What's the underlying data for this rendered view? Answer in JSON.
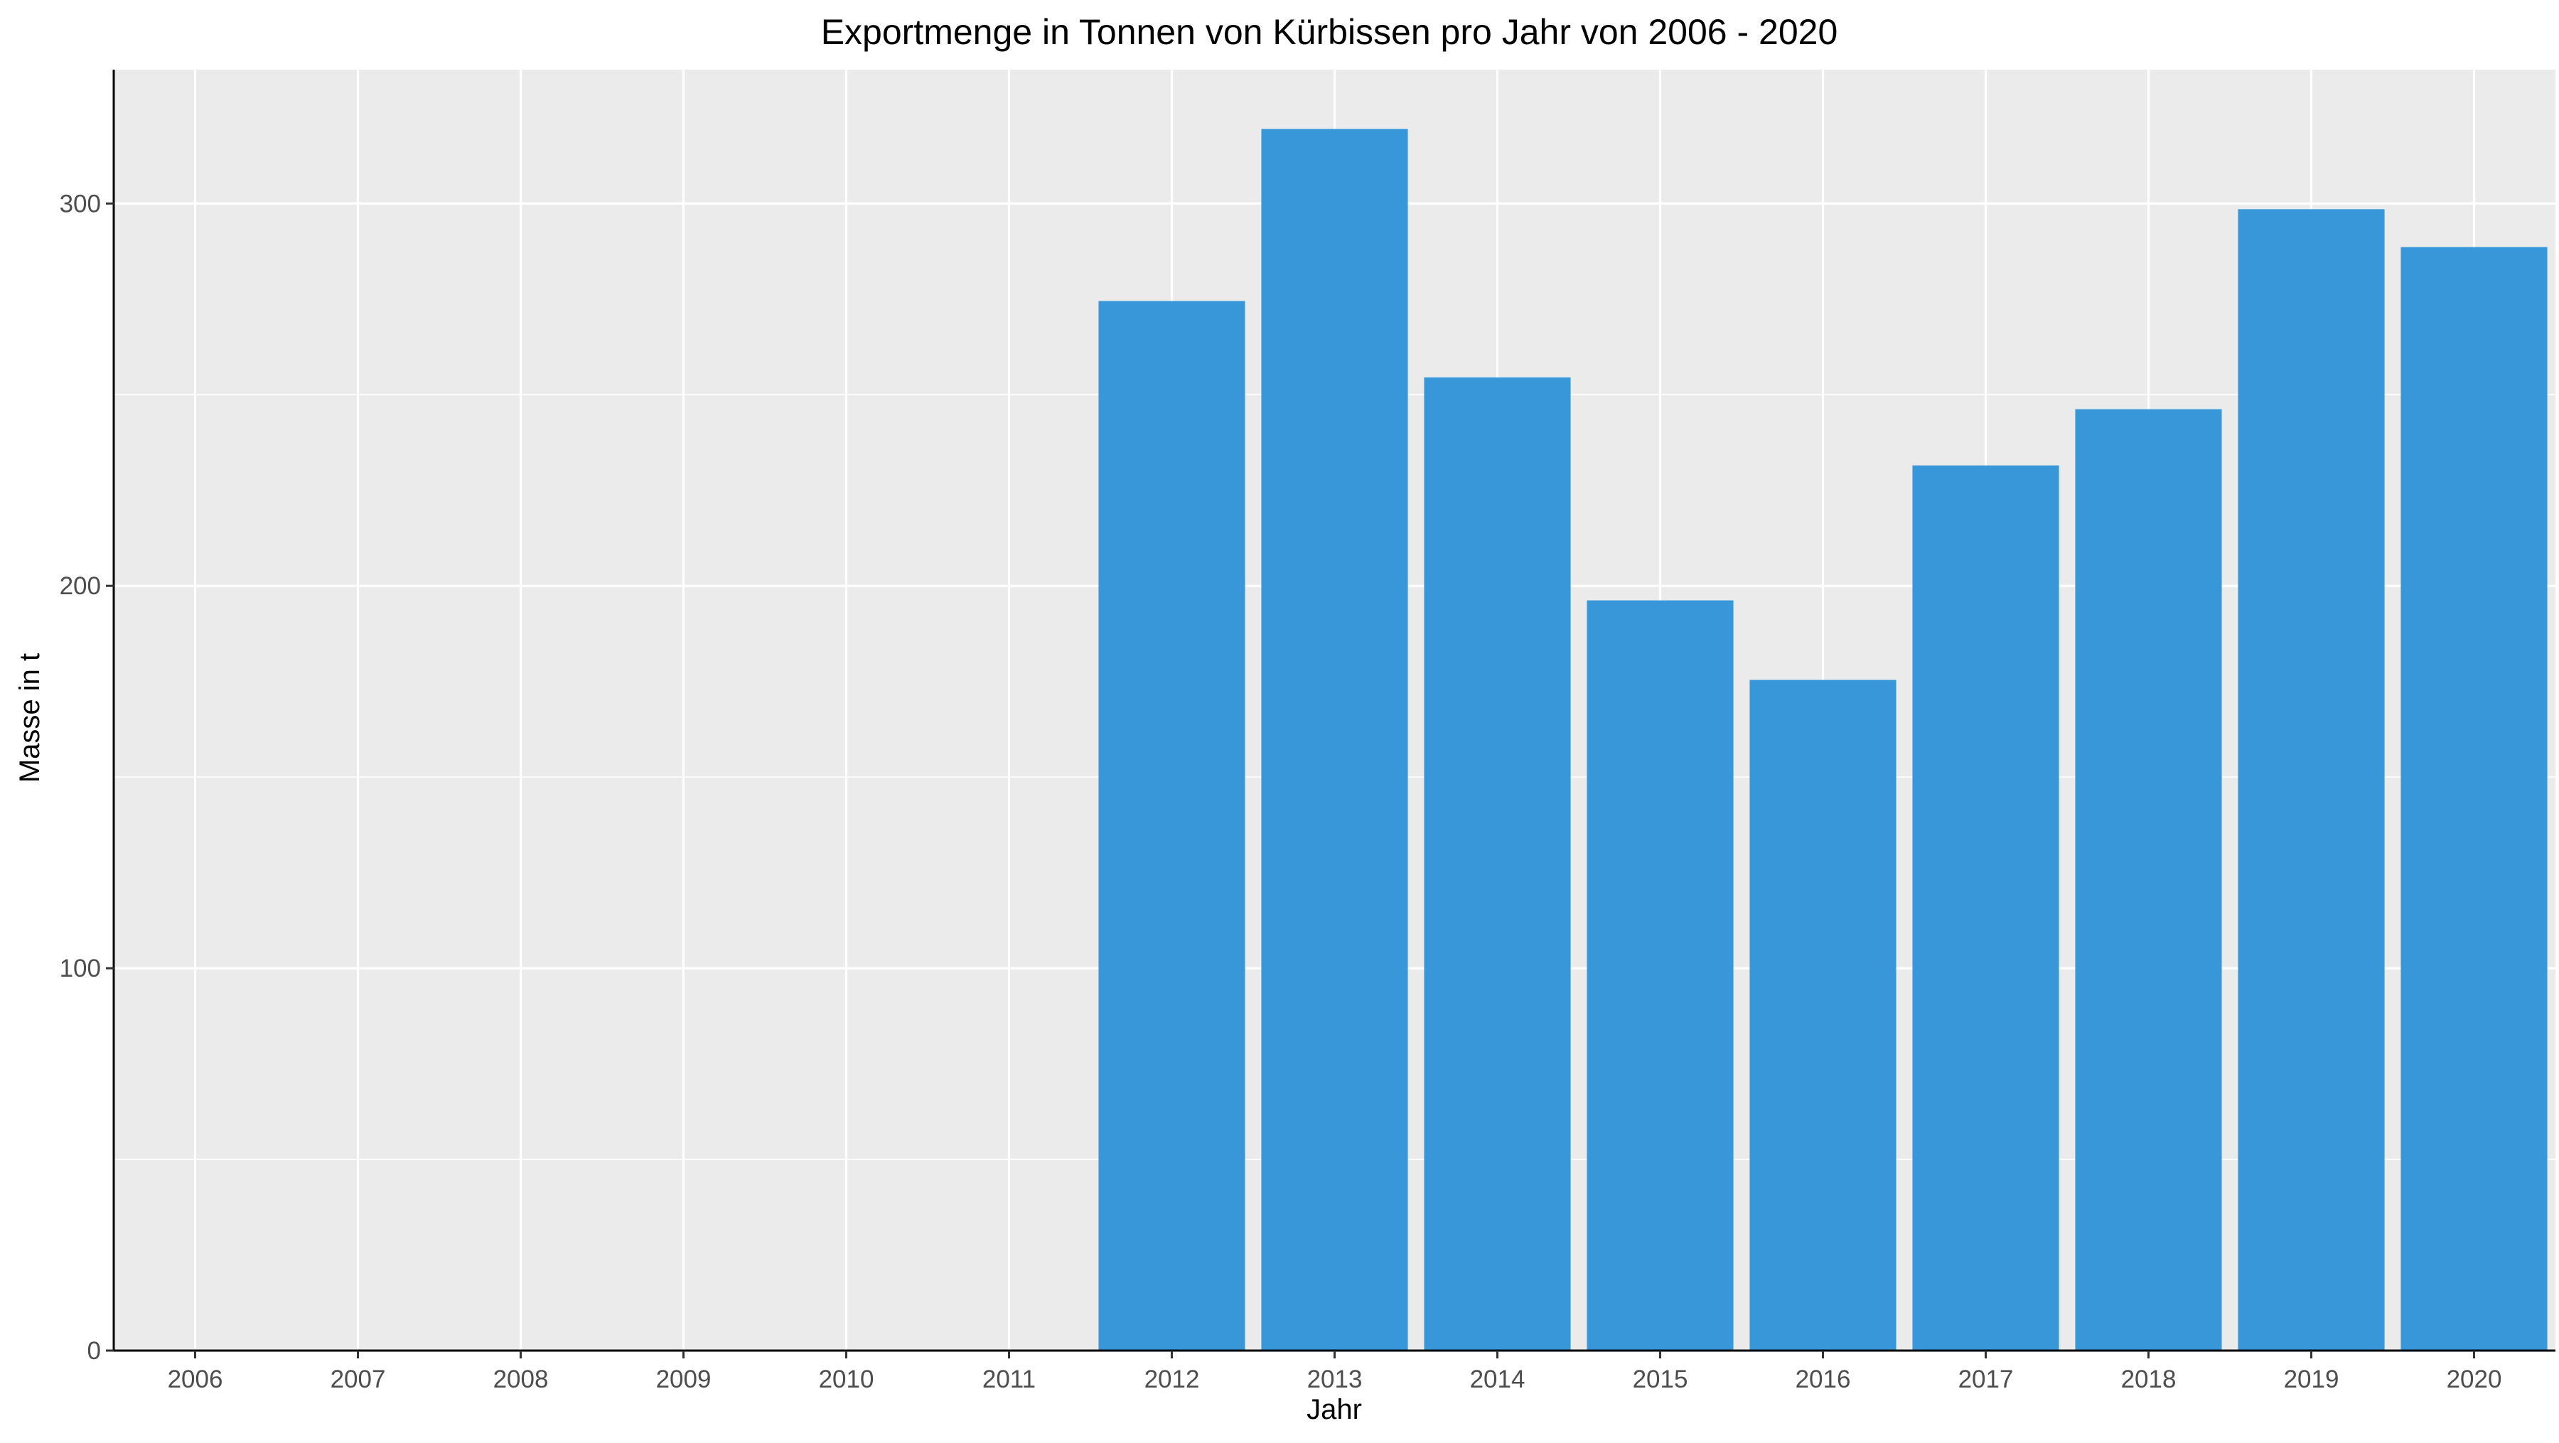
{
  "chart_data": {
    "type": "bar",
    "title": "Exportmenge in Tonnen von Kürbissen pro Jahr von 2006 - 2020",
    "xlabel": "Jahr",
    "ylabel": "Masse in t",
    "categories": [
      "2006",
      "2007",
      "2008",
      "2009",
      "2010",
      "2011",
      "2012",
      "2013",
      "2014",
      "2015",
      "2016",
      "2017",
      "2018",
      "2019",
      "2020"
    ],
    "values": [
      0,
      0,
      0,
      0,
      0,
      0,
      274.5,
      319.5,
      254.5,
      196.2,
      175.4,
      231.5,
      246.2,
      298.5,
      288.6
    ],
    "ylim": [
      0,
      335
    ],
    "yticks": [
      0,
      100,
      200,
      300
    ],
    "grid": true,
    "legend": "none",
    "colors": {
      "bar": "#3797d9",
      "panel_background": "#ebebeb",
      "grid": "#ffffff",
      "axis_line": "#000000"
    }
  }
}
